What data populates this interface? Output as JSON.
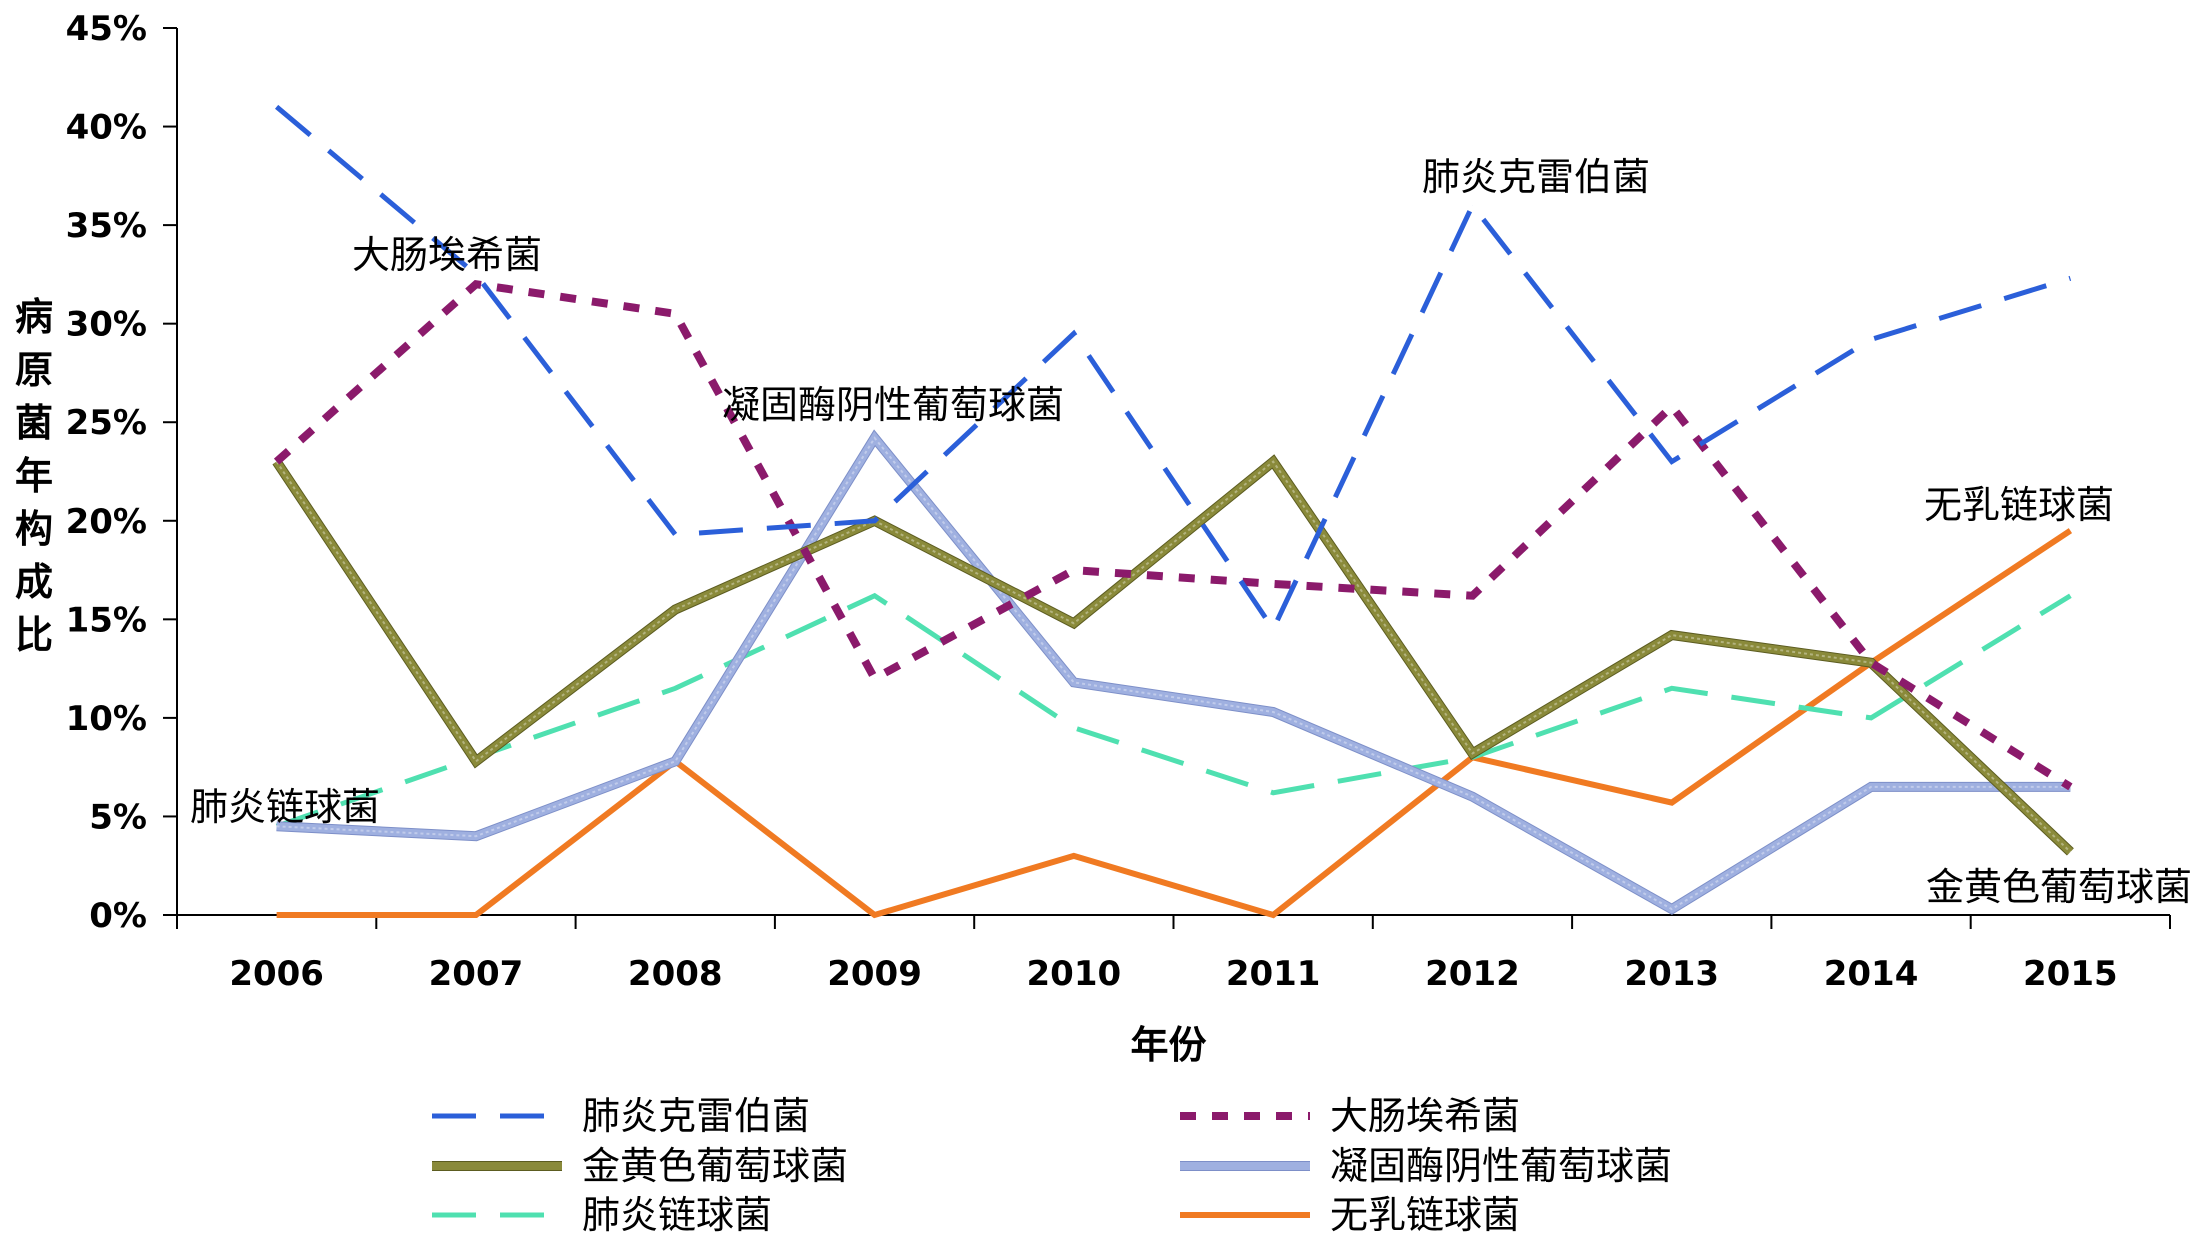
{
  "chart_data": {
    "type": "line",
    "title": "",
    "xlabel": "年份",
    "ylabel": "病原菌年构成比",
    "x": [
      "2006",
      "2007",
      "2008",
      "2009",
      "2010",
      "2011",
      "2012",
      "2013",
      "2014",
      "2015"
    ],
    "ylim": [
      0,
      45
    ],
    "yticks": [
      "0%",
      "5%",
      "10%",
      "15%",
      "20%",
      "25%",
      "30%",
      "35%",
      "40%",
      "45%"
    ],
    "grid": false,
    "legend_position": "bottom",
    "series": [
      {
        "name": "肺炎克雷伯菌",
        "color": "#2b5fd9",
        "dash": "long-dash",
        "values": [
          41,
          32.5,
          19.3,
          20,
          29.5,
          14.5,
          36,
          23,
          29.2,
          32.3
        ]
      },
      {
        "name": "大肠埃希菌",
        "color": "#8b1a6b",
        "dash": "short-dash",
        "values": [
          23,
          32,
          30.5,
          12,
          17.5,
          16.8,
          16.2,
          25.8,
          12.8,
          6.5
        ]
      },
      {
        "name": "金黄色葡萄球菌",
        "color": "#8a8a3a",
        "dash": "solid-thick",
        "values": [
          23,
          7.8,
          15.5,
          20,
          14.8,
          23,
          8.2,
          14.2,
          12.8,
          3.2
        ]
      },
      {
        "name": "凝固酶阴性葡萄球菌",
        "color": "#9fb0e0",
        "dash": "solid-light",
        "values": [
          4.5,
          4,
          7.8,
          24.2,
          11.8,
          10.3,
          6,
          0.3,
          6.5,
          6.5
        ]
      },
      {
        "name": "肺炎链球菌",
        "color": "#4fe0b0",
        "dash": "long-dash",
        "values": [
          4.5,
          8,
          11.5,
          16.2,
          9.5,
          6.2,
          8,
          11.5,
          10,
          16.2
        ]
      },
      {
        "name": "无乳链球菌",
        "color": "#f07a22",
        "dash": "solid",
        "values": [
          0,
          0,
          7.8,
          0,
          3,
          0,
          8,
          5.7,
          12.8,
          19.5
        ]
      }
    ],
    "annotations": [
      {
        "text": "大肠埃希菌"
      },
      {
        "text": "肺炎克雷伯菌"
      },
      {
        "text": "凝固酶阴性葡萄球菌"
      },
      {
        "text": "无乳链球菌"
      },
      {
        "text": "肺炎链球菌"
      },
      {
        "text": "金黄色葡萄球菌"
      }
    ]
  }
}
